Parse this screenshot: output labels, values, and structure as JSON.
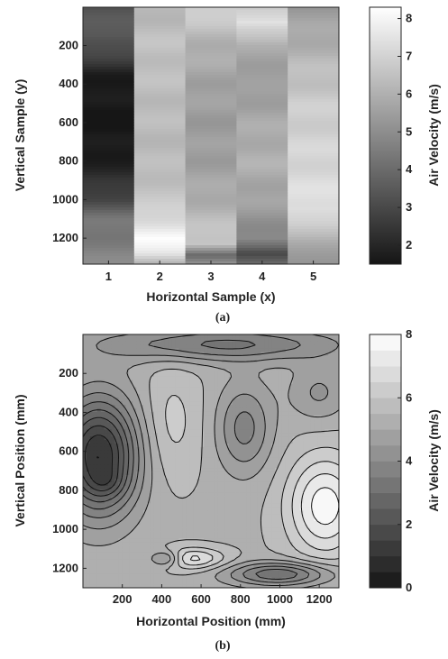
{
  "chart_data": [
    {
      "type": "heatmap",
      "panel_label": "(a)",
      "xlabel": "Horizontal Sample (x)",
      "ylabel": "Vertical Sample (y)",
      "x_ticks": [
        "1",
        "2",
        "3",
        "4",
        "5"
      ],
      "y_ticks": [
        "200",
        "400",
        "600",
        "800",
        "1000",
        "1200"
      ],
      "ylim": [
        1,
        1335
      ],
      "colorbar": {
        "label": "Air Velocity (m/s)",
        "ticks": [
          "2",
          "3",
          "4",
          "5",
          "6",
          "7",
          "8"
        ],
        "range": [
          1.5,
          8.3
        ]
      },
      "columns": [
        {
          "x": 1,
          "profile": [
            [
              1,
              3.2
            ],
            [
              150,
              3.6
            ],
            [
              250,
              2.8
            ],
            [
              350,
              1.8
            ],
            [
              450,
              1.6
            ],
            [
              650,
              1.5
            ],
            [
              850,
              1.9
            ],
            [
              1000,
              3.0
            ],
            [
              1100,
              4.2
            ],
            [
              1335,
              4.8
            ]
          ]
        },
        {
          "x": 2,
          "profile": [
            [
              1,
              6.2
            ],
            [
              200,
              6.5
            ],
            [
              400,
              6.4
            ],
            [
              600,
              6.3
            ],
            [
              800,
              6.3
            ],
            [
              1000,
              6.6
            ],
            [
              1120,
              7.4
            ],
            [
              1200,
              8.1
            ],
            [
              1280,
              7.6
            ],
            [
              1335,
              6.2
            ]
          ]
        },
        {
          "x": 3,
          "profile": [
            [
              1,
              7.0
            ],
            [
              200,
              6.0
            ],
            [
              400,
              5.6
            ],
            [
              600,
              5.4
            ],
            [
              800,
              5.5
            ],
            [
              1000,
              5.9
            ],
            [
              1150,
              6.5
            ],
            [
              1230,
              6.8
            ],
            [
              1290,
              3.8
            ],
            [
              1335,
              5.0
            ]
          ]
        },
        {
          "x": 4,
          "profile": [
            [
              1,
              6.6
            ],
            [
              80,
              7.6
            ],
            [
              200,
              5.8
            ],
            [
              400,
              5.4
            ],
            [
              600,
              5.8
            ],
            [
              800,
              6.0
            ],
            [
              1000,
              5.6
            ],
            [
              1200,
              4.8
            ],
            [
              1280,
              2.9
            ],
            [
              1335,
              4.2
            ]
          ]
        },
        {
          "x": 5,
          "profile": [
            [
              1,
              5.4
            ],
            [
              150,
              5.8
            ],
            [
              300,
              6.3
            ],
            [
              500,
              6.8
            ],
            [
              700,
              7.0
            ],
            [
              900,
              7.2
            ],
            [
              1050,
              7.5
            ],
            [
              1150,
              6.5
            ],
            [
              1250,
              5.8
            ],
            [
              1335,
              5.0
            ]
          ]
        }
      ]
    },
    {
      "type": "contour",
      "panel_label": "(b)",
      "xlabel": "Horizontal Position (mm)",
      "ylabel": "Vertical Position (mm)",
      "x_ticks": [
        "200",
        "400",
        "600",
        "800",
        "1000",
        "1200"
      ],
      "y_ticks": [
        "200",
        "400",
        "600",
        "800",
        "1000",
        "1200"
      ],
      "xlim": [
        0,
        1300
      ],
      "ylim": [
        0,
        1300
      ],
      "colorbar": {
        "label": "Air Velocity (m/s)",
        "ticks": [
          "0",
          "2",
          "4",
          "6",
          "8"
        ],
        "range": [
          0,
          8
        ],
        "levels": 16
      },
      "features": [
        {
          "x": 80,
          "y": 620,
          "peak": -4.4,
          "rx": 200,
          "ry": 300
        },
        {
          "x": 120,
          "y": 760,
          "peak": -0.6,
          "rx": 90,
          "ry": 70
        },
        {
          "x": 1230,
          "y": 880,
          "peak": 2.4,
          "rx": 190,
          "ry": 260
        },
        {
          "x": 820,
          "y": 480,
          "peak": -1.6,
          "rx": 140,
          "ry": 230
        },
        {
          "x": 550,
          "y": 1150,
          "peak": 1.8,
          "rx": 170,
          "ry": 55
        },
        {
          "x": 420,
          "y": 1150,
          "peak": -1.8,
          "rx": 80,
          "ry": 40
        },
        {
          "x": 1000,
          "y": 1230,
          "peak": -2.4,
          "rx": 260,
          "ry": 60
        },
        {
          "x": 700,
          "y": 50,
          "peak": -2.0,
          "rx": 650,
          "ry": 90
        },
        {
          "x": 450,
          "y": 450,
          "peak": 0.8,
          "rx": 150,
          "ry": 300
        },
        {
          "x": 1200,
          "y": 300,
          "peak": -1.0,
          "rx": 150,
          "ry": 150
        }
      ],
      "base_velocity": 5.4
    }
  ]
}
